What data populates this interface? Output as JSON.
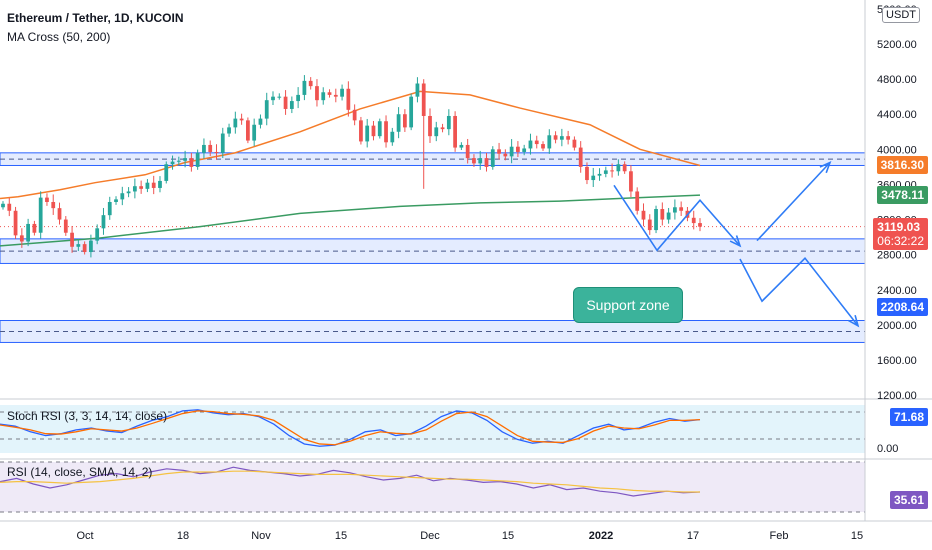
{
  "header": {
    "title": "Ethereum / Tether, 1D, KUCOIN",
    "indicator": "MA Cross (50, 200)",
    "currency": "USDT"
  },
  "panes": {
    "stoch_label": "Stoch RSI (3, 3, 14, 14, close)",
    "rsi_label": "RSI (14, close, SMA, 14, 2)"
  },
  "annotation": {
    "support_zone": "Support zone"
  },
  "colors": {
    "up": "#26a69a",
    "down": "#ef5350",
    "ma_fast": "#f57c2a",
    "ma_slow": "#3a9b62",
    "zone_fill": "#dbe6ff",
    "zone_line": "#2962ff",
    "arrow": "#2f7cf6"
  },
  "chart_data": [
    {
      "type": "candlestick",
      "title": "Ethereum / Tether, 1D, KUCOIN",
      "y_ticks": [
        "5600.00",
        "5200.00",
        "4800.00",
        "4400.00",
        "4000.00",
        "3600.00",
        "3200.00",
        "2800.00",
        "2400.00",
        "2000.00",
        "1600.00",
        "1200.00"
      ],
      "x_ticks": [
        "Oct",
        "18",
        "Nov",
        "15",
        "Dec",
        "15",
        "2022",
        "17",
        "Feb",
        "15"
      ],
      "ylim": [
        1150,
        5650
      ],
      "price_labels": [
        {
          "value": "3816.30",
          "color": "#f57c2a"
        },
        {
          "value": "3478.11",
          "color": "#3a9b62"
        },
        {
          "value": "3119.03",
          "color": "#ef5350",
          "countdown": "06:32:22"
        },
        {
          "value": "2208.64",
          "color": "#2962ff"
        }
      ],
      "closes": [
        3380,
        3300,
        3020,
        2950,
        3150,
        3050,
        3450,
        3400,
        3330,
        3200,
        3050,
        2890,
        2920,
        2830,
        2960,
        3100,
        3250,
        3400,
        3430,
        3500,
        3520,
        3580,
        3550,
        3620,
        3560,
        3640,
        3830,
        3860,
        3870,
        3900,
        3800,
        3960,
        4050,
        3970,
        3960,
        4180,
        4250,
        4350,
        4330,
        4100,
        4280,
        4350,
        4560,
        4600,
        4600,
        4460,
        4550,
        4620,
        4780,
        4720,
        4560,
        4650,
        4620,
        4600,
        4690,
        4450,
        4330,
        4090,
        4270,
        4150,
        4320,
        4080,
        4200,
        4400,
        4250,
        4600,
        4750,
        4380,
        4150,
        4250,
        4230,
        4380,
        4020,
        4050,
        3900,
        3840,
        3900,
        3800,
        4000,
        3950,
        3920,
        4030,
        3970,
        4010,
        4100,
        4060,
        4010,
        4160,
        4110,
        4150,
        4110,
        4020,
        3800,
        3650,
        3700,
        3720,
        3760,
        3750,
        3830,
        3750,
        3520,
        3300,
        3200,
        3080,
        3320,
        3200,
        3280,
        3340,
        3300,
        3220,
        3160,
        3119
      ],
      "ma50": [
        [
          0,
          3440
        ],
        [
          18,
          3460
        ],
        [
          60,
          3540
        ],
        [
          95,
          3620
        ],
        [
          145,
          3710
        ],
        [
          185,
          3850
        ],
        [
          235,
          3960
        ],
        [
          300,
          4200
        ],
        [
          360,
          4460
        ],
        [
          420,
          4660
        ],
        [
          470,
          4620
        ],
        [
          520,
          4470
        ],
        [
          590,
          4280
        ],
        [
          640,
          4000
        ],
        [
          700,
          3816
        ]
      ],
      "ma200": [
        [
          0,
          2900
        ],
        [
          100,
          2990
        ],
        [
          200,
          3120
        ],
        [
          300,
          3270
        ],
        [
          400,
          3350
        ],
        [
          480,
          3390
        ],
        [
          560,
          3410
        ],
        [
          640,
          3450
        ],
        [
          700,
          3478
        ]
      ],
      "zones": [
        [
          3816,
          3960
        ],
        [
          2700,
          2980
        ],
        [
          1800,
          2050
        ]
      ],
      "projection_path": [
        [
          614,
          3590
        ],
        [
          657,
          2850
        ],
        [
          700,
          3420
        ],
        [
          740,
          2900
        ]
      ],
      "forecast_path": [
        [
          757,
          2960
        ],
        [
          830,
          3850
        ]
      ],
      "forecast_path_2": [
        [
          740,
          2750
        ],
        [
          762,
          2270
        ],
        [
          805,
          2760
        ],
        [
          858,
          1990
        ]
      ]
    },
    {
      "type": "line",
      "title": "Stoch RSI (3, 3, 14, 14, close)",
      "y_ticks": [
        "0.00"
      ],
      "current_value": "71.68",
      "ylim": [
        0,
        100
      ],
      "series": [
        {
          "values": [
            60,
            55,
            40,
            30,
            35,
            45,
            50,
            42,
            38,
            55,
            70,
            80,
            95,
            98,
            90,
            85,
            88,
            80,
            60,
            30,
            8,
            2,
            5,
            20,
            40,
            45,
            30,
            35,
            55,
            80,
            95,
            90,
            70,
            40,
            20,
            10,
            15,
            10,
            30,
            50,
            60,
            45,
            50,
            65,
            75,
            68,
            72
          ]
        },
        {
          "values": [
            58,
            52,
            45,
            35,
            34,
            40,
            48,
            45,
            42,
            50,
            62,
            75,
            88,
            95,
            93,
            88,
            86,
            82,
            70,
            45,
            20,
            8,
            6,
            15,
            30,
            40,
            36,
            34,
            45,
            68,
            88,
            92,
            80,
            55,
            30,
            15,
            13,
            12,
            22,
            42,
            55,
            50,
            48,
            58,
            70,
            70,
            72
          ]
        }
      ]
    },
    {
      "type": "line",
      "title": "RSI (14, close, SMA, 14, 2)",
      "current_value": "35.61",
      "series": [
        {
          "values": [
            48,
            52,
            45,
            40,
            44,
            50,
            56,
            58,
            54,
            60,
            64,
            62,
            58,
            60,
            66,
            62,
            60,
            58,
            55,
            57,
            62,
            59,
            54,
            50,
            52,
            56,
            49,
            52,
            50,
            47,
            48,
            45,
            40,
            44,
            38,
            40,
            36,
            34,
            30,
            33,
            36,
            34,
            35
          ]
        },
        {
          "values": [
            47,
            48,
            48,
            47,
            46,
            47,
            48,
            50,
            52,
            55,
            58,
            60,
            60,
            60,
            61,
            61,
            60,
            59,
            58,
            57,
            57,
            57,
            56,
            55,
            54,
            53,
            52,
            51,
            51,
            50,
            49,
            48,
            46,
            45,
            44,
            42,
            40,
            39,
            37,
            36,
            36,
            35,
            35
          ]
        }
      ]
    }
  ]
}
